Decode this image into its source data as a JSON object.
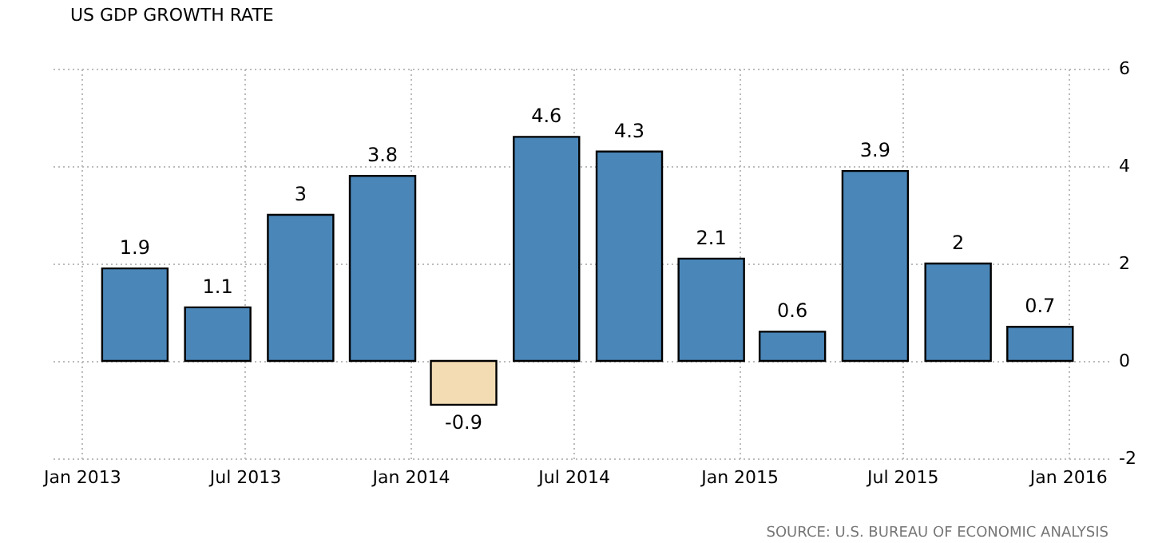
{
  "chart_data": {
    "type": "bar",
    "title": "US GDP GROWTH RATE",
    "x": [
      "2013-03",
      "2013-06",
      "2013-09",
      "2013-12",
      "2014-03",
      "2014-06",
      "2014-09",
      "2014-12",
      "2015-03",
      "2015-06",
      "2015-09",
      "2015-12"
    ],
    "values": [
      1.9,
      1.1,
      3,
      3.8,
      -0.9,
      4.6,
      4.3,
      2.1,
      0.6,
      3.9,
      2,
      0.7
    ],
    "colors": [
      "#4a86b8",
      "#4a86b8",
      "#4a86b8",
      "#4a86b8",
      "#f3dcb4",
      "#4a86b8",
      "#4a86b8",
      "#4a86b8",
      "#4a86b8",
      "#4a86b8",
      "#4a86b8",
      "#4a86b8"
    ],
    "data_labels": true,
    "xlim": [
      "2012-11-28",
      "2016-02-15"
    ],
    "xticks": [
      {
        "value": "2013-01",
        "label": "Jan 2013"
      },
      {
        "value": "2013-07",
        "label": "Jul 2013"
      },
      {
        "value": "2014-01",
        "label": "Jan 2014"
      },
      {
        "value": "2014-07",
        "label": "Jul 2014"
      },
      {
        "value": "2015-01",
        "label": "Jan 2015"
      },
      {
        "value": "2015-07",
        "label": "Jul 2015"
      },
      {
        "value": "2016-01",
        "label": "Jan 2016"
      }
    ],
    "ylim": [
      -2,
      6
    ],
    "yticks": [
      -2,
      0,
      2,
      4,
      6
    ],
    "grid": true,
    "annotations": [
      "SOURCE: U.S. BUREAU OF ECONOMIC ANALYSIS"
    ]
  }
}
